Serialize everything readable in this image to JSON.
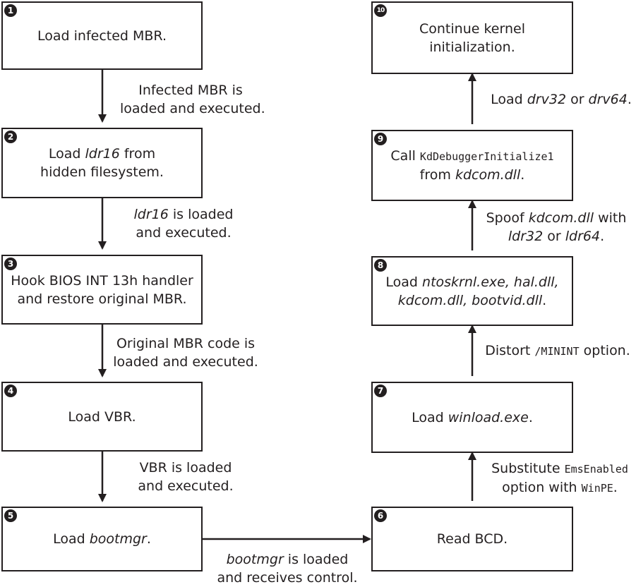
{
  "steps": {
    "s1": {
      "num": "1",
      "line1": "Load infected MBR."
    },
    "s2": {
      "num": "2",
      "pre": "Load ",
      "em": "ldr16",
      "post": " from",
      "line2": "hidden filesystem."
    },
    "s3": {
      "num": "3",
      "line1": "Hook BIOS INT 13h handler",
      "line2": "and restore original MBR."
    },
    "s4": {
      "num": "4",
      "line1": "Load VBR."
    },
    "s5": {
      "num": "5",
      "pre": "Load ",
      "em": "bootmgr",
      "post": "."
    },
    "s6": {
      "num": "6",
      "line1": "Read BCD."
    },
    "s7": {
      "num": "7",
      "pre": "Load ",
      "em": "winload.exe",
      "post": "."
    },
    "s8": {
      "num": "8",
      "pre": "Load ",
      "em1": "ntoskrnl.exe, hal.dll,",
      "em2": "kdcom.dll, bootvid.dll",
      "post": "."
    },
    "s9": {
      "num": "9",
      "pre": "Call ",
      "code": "KdDebuggerInitialize1",
      "pre2": "from ",
      "em": "kdcom.dll",
      "post": "."
    },
    "s10": {
      "num": "10",
      "line1": "Continue kernel",
      "line2": "initialization."
    }
  },
  "transitions": {
    "t12": {
      "line1": "Infected MBR is",
      "line2": "loaded and executed."
    },
    "t23": {
      "em": "ldr16",
      "post": " is loaded",
      "line2": "and executed."
    },
    "t34": {
      "line1": "Original MBR code is",
      "line2": "loaded and executed."
    },
    "t45": {
      "line1": "VBR is loaded",
      "line2": "and executed."
    },
    "t56": {
      "em": "bootmgr",
      "post": " is loaded",
      "line2": "and receives control."
    },
    "t67": {
      "line1": "Substitute ",
      "code1": "EmsEnabled",
      "line2": "option with ",
      "code2": "WinPE",
      "post2": "."
    },
    "t78": {
      "line1": "Distort ",
      "code": "/MININT",
      "post": " option."
    },
    "t89": {
      "pre": "Spoof ",
      "em1": "kdcom.dll",
      "mid": " with",
      "em2": "ldr32",
      "or": " or ",
      "em3": "ldr64",
      "post": "."
    },
    "t910": {
      "pre": "Load ",
      "em1": "drv32",
      "or": " or ",
      "em2": "drv64",
      "post": "."
    }
  }
}
